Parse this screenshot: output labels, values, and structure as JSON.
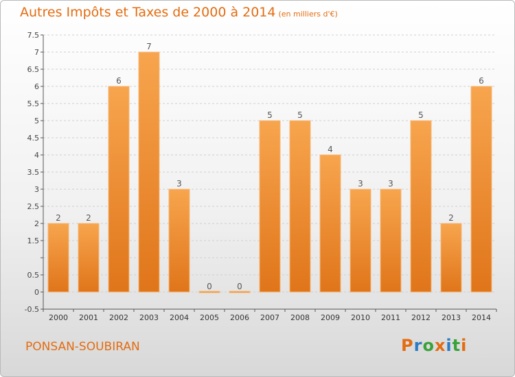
{
  "header": {
    "title": "Autres Impôts et Taxes de 2000 à 2014",
    "unit": "(en milliers d'€)"
  },
  "footer": {
    "commune": "PONSAN-SOUBIRAN",
    "logo_text": "Proxiti"
  },
  "colors": {
    "accent": "#e36c10",
    "bar_light": "#f7a54e",
    "bar_dark": "#e0751a",
    "logo_letters": [
      "#e36c10",
      "#2c7bc4",
      "#3aa23a",
      "#e36c10",
      "#2c7bc4",
      "#3aa23a",
      "#e36c10"
    ]
  },
  "chart_data": {
    "type": "bar",
    "title": "Autres Impôts et Taxes de 2000 à 2014",
    "subtitle": "(en milliers d'€)",
    "xlabel": "",
    "ylabel": "",
    "categories": [
      "2000",
      "2001",
      "2002",
      "2003",
      "2004",
      "2005",
      "2006",
      "2007",
      "2008",
      "2009",
      "2010",
      "2011",
      "2012",
      "2013",
      "2014"
    ],
    "values": [
      2,
      2,
      6,
      7,
      3,
      0,
      0,
      5,
      5,
      4,
      3,
      3,
      5,
      2,
      6
    ],
    "data_labels": [
      "2",
      "2",
      "6",
      "7",
      "3",
      "0",
      "0",
      "5",
      "5",
      "4",
      "3",
      "3",
      "5",
      "2",
      "6"
    ],
    "ylim": [
      -0.5,
      7.5
    ],
    "yticks": [
      -0.5,
      0,
      0.5,
      1,
      1.5,
      2,
      2.5,
      3,
      3.5,
      4,
      4.5,
      5,
      5.5,
      6,
      6.5,
      7,
      7.5
    ],
    "ytick_labels": [
      "-0.5",
      "0",
      "0.5",
      "",
      "1.5",
      "2",
      "2.5",
      "3",
      "3.5",
      "4",
      "4.5",
      "5",
      "5.5",
      "6",
      "6.5",
      "7",
      "7.5"
    ],
    "grid": true,
    "legend": "none"
  }
}
